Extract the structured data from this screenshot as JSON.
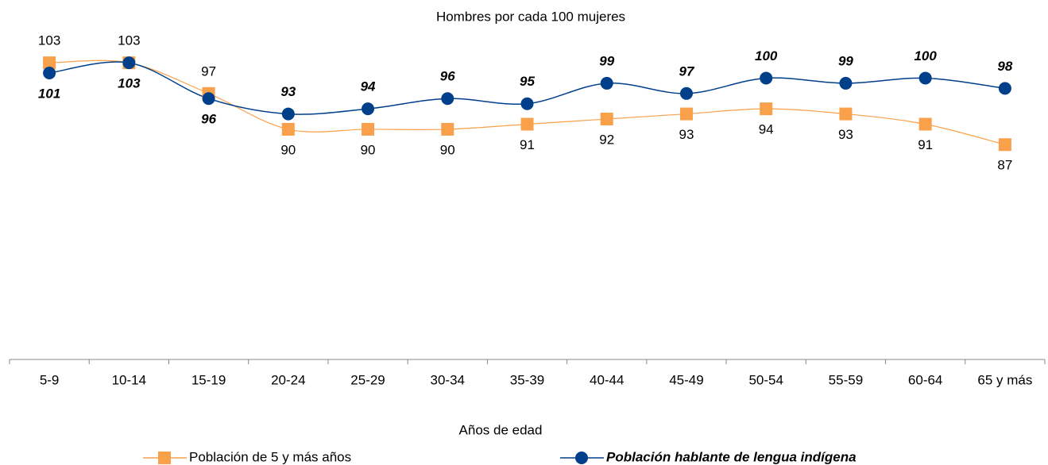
{
  "chart_data": {
    "type": "line",
    "title": "Hombres por cada 100 mujeres",
    "x_label": "Años de edad",
    "categories": [
      "5-9",
      "10-14",
      "15-19",
      "20-24",
      "25-29",
      "30-34",
      "35-39",
      "40-44",
      "45-49",
      "50-54",
      "55-59",
      "60-64",
      "65 y más"
    ],
    "series": [
      {
        "name": "Población de 5 y más años",
        "color": "#f9a04b",
        "marker": "square",
        "values": [
          103,
          103,
          97,
          90,
          90,
          90,
          91,
          92,
          93,
          94,
          93,
          91,
          87
        ]
      },
      {
        "name": "Población hablante de lengua indígena",
        "color": "#003f8a",
        "marker": "circle",
        "values": [
          101,
          103,
          96,
          93,
          94,
          96,
          95,
          99,
          97,
          100,
          99,
          100,
          98
        ]
      }
    ],
    "ylim": [
      45,
      110
    ]
  }
}
